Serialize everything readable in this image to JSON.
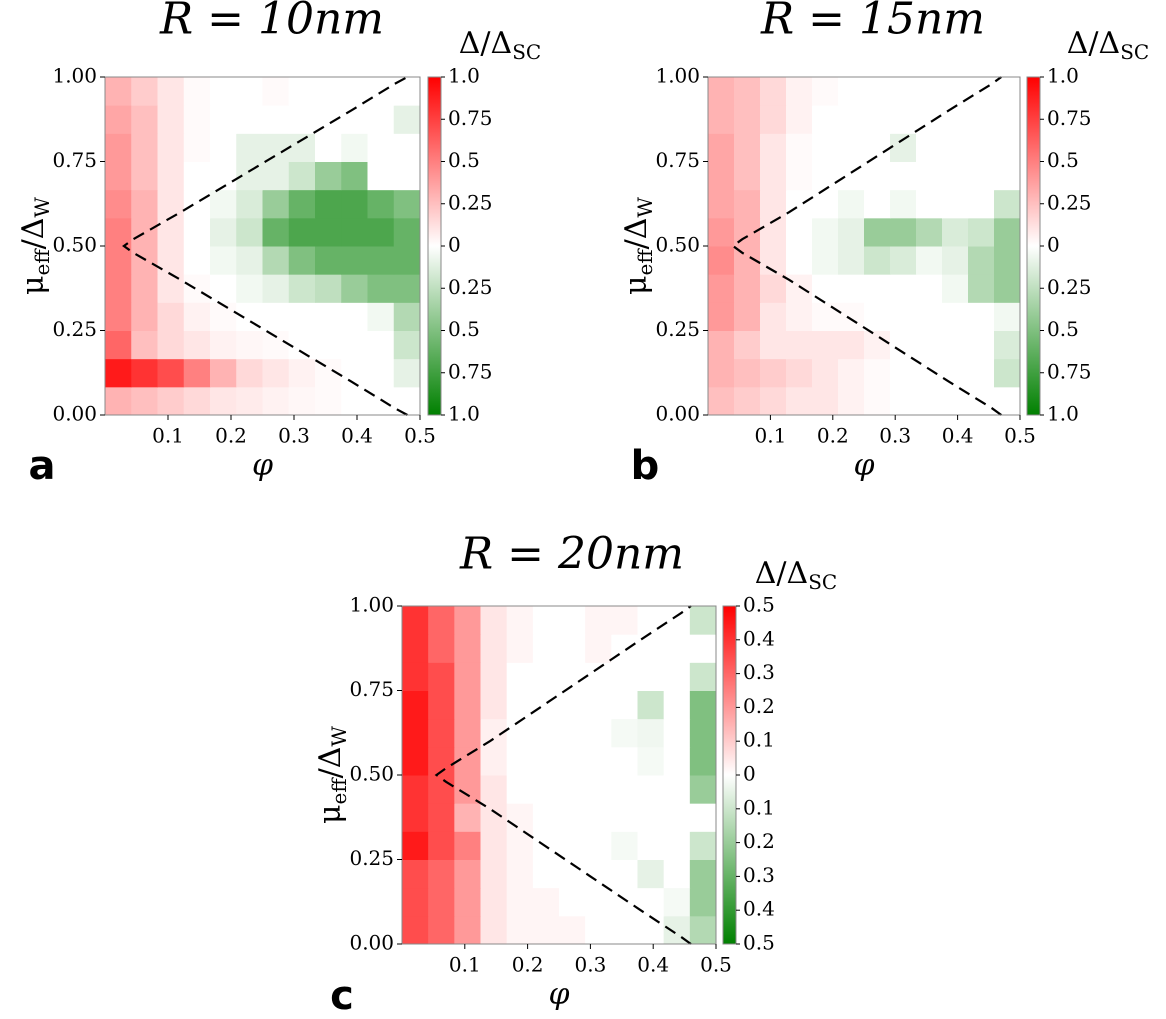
{
  "chart_data": [
    {
      "type": "heatmap",
      "title": "R = 10nm",
      "panel_label": "a",
      "xlabel": "φ",
      "ylabel": [
        "μ",
        "eff",
        "/Δ",
        "W"
      ],
      "colorbar_label": [
        "Δ/Δ",
        "SC"
      ],
      "xlim": [
        0,
        0.5
      ],
      "ylim": [
        0,
        1
      ],
      "xticks": [
        0.1,
        0.2,
        0.3,
        0.4,
        0.5
      ],
      "yticks": [
        {
          "value": 0,
          "label": "0.00"
        },
        0.25,
        {
          "value": 0.5,
          "label": "0.50"
        },
        0.75,
        {
          "value": 1,
          "label": "1.00"
        }
      ],
      "clim": [
        -1,
        1
      ],
      "cticks": [
        {
          "value": -1,
          "label": "1.0"
        },
        {
          "value": -0.75,
          "label": "0.75"
        },
        {
          "value": -0.5,
          "label": "0.5"
        },
        {
          "value": -0.25,
          "label": "0.25"
        },
        0,
        0.25,
        0.5,
        0.75,
        {
          "value": 1,
          "label": "1.0"
        }
      ],
      "colormap": [
        "#008000",
        "#ffffff",
        "#ff0000"
      ],
      "values": [
        [
          0.3,
          0.25,
          0.2,
          0.15,
          0.1,
          0.08,
          0.05,
          0.03,
          0.02,
          0,
          0,
          0
        ],
        [
          0.9,
          0.8,
          0.7,
          0.5,
          0.3,
          0.15,
          0.1,
          0.05,
          0.02,
          0,
          0,
          -0.1
        ],
        [
          0.6,
          0.25,
          0.15,
          0.1,
          0.05,
          0.03,
          0.02,
          0,
          0,
          0,
          0,
          -0.2
        ],
        [
          0.5,
          0.3,
          0.15,
          0.05,
          0.02,
          0,
          0,
          0,
          0,
          0,
          -0.05,
          -0.3
        ],
        [
          0.5,
          0.3,
          0.1,
          0.02,
          0,
          -0.05,
          -0.1,
          -0.2,
          -0.25,
          -0.4,
          -0.5,
          -0.5
        ],
        [
          0.5,
          0.3,
          0.1,
          0,
          -0.05,
          -0.1,
          -0.3,
          -0.5,
          -0.6,
          -0.6,
          -0.6,
          -0.6
        ],
        [
          0.5,
          0.3,
          0.1,
          0,
          -0.1,
          -0.2,
          -0.6,
          -0.7,
          -0.7,
          -0.7,
          -0.7,
          -0.6
        ],
        [
          0.45,
          0.3,
          0.1,
          0,
          -0.05,
          -0.15,
          -0.4,
          -0.6,
          -0.7,
          -0.7,
          -0.6,
          -0.5
        ],
        [
          0.4,
          0.25,
          0.1,
          0,
          0,
          -0.1,
          -0.1,
          -0.2,
          -0.4,
          -0.5,
          0,
          0
        ],
        [
          0.4,
          0.25,
          0.1,
          0.02,
          0,
          -0.1,
          -0.1,
          -0.1,
          0,
          -0.05,
          0,
          0
        ],
        [
          0.35,
          0.25,
          0.1,
          0.02,
          0,
          0,
          0,
          0,
          0,
          0,
          0,
          -0.1
        ],
        [
          0.3,
          0.2,
          0.1,
          0.02,
          0,
          0,
          0.02,
          0,
          0,
          0,
          0,
          0
        ]
      ],
      "boundary": {
        "x": [
          0.48,
          0.46,
          0.39,
          0.3,
          0.21,
          0.12,
          0.045,
          0.03,
          0.045,
          0.12,
          0.21,
          0.3,
          0.39,
          0.46,
          0.48
        ],
        "y": [
          0,
          0.02,
          0.1,
          0.2,
          0.3,
          0.4,
          0.48,
          0.5,
          0.52,
          0.6,
          0.7,
          0.8,
          0.9,
          0.98,
          1
        ]
      }
    },
    {
      "type": "heatmap",
      "title": "R = 15nm",
      "panel_label": "b",
      "xlabel": "φ",
      "ylabel": [
        "μ",
        "eff",
        "/Δ",
        "W"
      ],
      "colorbar_label": [
        "Δ/Δ",
        "SC"
      ],
      "xlim": [
        0,
        0.5
      ],
      "ylim": [
        0,
        1
      ],
      "xticks": [
        0.1,
        0.2,
        0.3,
        0.4,
        0.5
      ],
      "yticks": [
        {
          "value": 0,
          "label": "0.00"
        },
        0.25,
        {
          "value": 0.5,
          "label": "0.50"
        },
        0.75,
        {
          "value": 1,
          "label": "1.00"
        }
      ],
      "clim": [
        -1,
        1
      ],
      "cticks": [
        {
          "value": -1,
          "label": "1.0"
        },
        {
          "value": -0.75,
          "label": "0.75"
        },
        {
          "value": -0.5,
          "label": "0.5"
        },
        {
          "value": -0.25,
          "label": "0.25"
        },
        0,
        0.25,
        0.5,
        0.75,
        {
          "value": 1,
          "label": "1.0"
        }
      ],
      "colormap": [
        "#008000",
        "#ffffff",
        "#ff0000"
      ],
      "values": [
        [
          0.25,
          0.2,
          0.15,
          0.1,
          0.1,
          0.05,
          0.02,
          0,
          0,
          0,
          0,
          0
        ],
        [
          0.3,
          0.25,
          0.2,
          0.15,
          0.1,
          0.05,
          0.02,
          0,
          0,
          0,
          0,
          -0.2
        ],
        [
          0.3,
          0.2,
          0.1,
          0.1,
          0.1,
          0.1,
          0.05,
          0,
          0,
          0,
          0,
          -0.15
        ],
        [
          0.4,
          0.3,
          0.1,
          0.05,
          0.02,
          0.02,
          0,
          0,
          0,
          0,
          0,
          -0.05
        ],
        [
          0.4,
          0.3,
          0.15,
          0.05,
          0,
          0,
          0,
          0,
          0,
          -0.05,
          -0.3,
          -0.4
        ],
        [
          0.45,
          0.3,
          0.1,
          0,
          -0.05,
          -0.1,
          -0.2,
          -0.15,
          -0.05,
          -0.1,
          -0.3,
          -0.4
        ],
        [
          0.4,
          0.3,
          0.1,
          0,
          -0.05,
          -0.1,
          -0.4,
          -0.4,
          -0.3,
          -0.15,
          -0.2,
          -0.4
        ],
        [
          0.35,
          0.3,
          0.1,
          0,
          0,
          -0.05,
          0,
          -0.05,
          0,
          0,
          0,
          -0.2
        ],
        [
          0.35,
          0.25,
          0.1,
          0.02,
          0,
          0,
          0,
          0,
          0,
          0,
          0,
          0
        ],
        [
          0.35,
          0.25,
          0.1,
          0.02,
          0,
          0,
          0,
          -0.1,
          0,
          0,
          0,
          0
        ],
        [
          0.3,
          0.25,
          0.15,
          0.05,
          0,
          0,
          0,
          0,
          0,
          0,
          0,
          0
        ],
        [
          0.3,
          0.25,
          0.15,
          0.05,
          0.02,
          0,
          0,
          0,
          0,
          0,
          0,
          0
        ]
      ],
      "boundary": {
        "x": [
          0.47,
          0.455,
          0.385,
          0.3,
          0.215,
          0.13,
          0.055,
          0.04,
          0.055,
          0.13,
          0.215,
          0.3,
          0.385,
          0.455,
          0.47
        ],
        "y": [
          0,
          0.02,
          0.1,
          0.2,
          0.3,
          0.4,
          0.48,
          0.5,
          0.52,
          0.6,
          0.7,
          0.8,
          0.9,
          0.98,
          1
        ]
      }
    },
    {
      "type": "heatmap",
      "title": "R = 20nm",
      "panel_label": "c",
      "xlabel": "φ",
      "ylabel": [
        "μ",
        "eff",
        "/Δ",
        "W"
      ],
      "colorbar_label": [
        "Δ/Δ",
        "SC"
      ],
      "xlim": [
        0,
        0.5
      ],
      "ylim": [
        0,
        1
      ],
      "xticks": [
        0.1,
        0.2,
        0.3,
        0.4,
        0.5
      ],
      "yticks": [
        {
          "value": 0,
          "label": "0.00"
        },
        0.25,
        {
          "value": 0.5,
          "label": "0.50"
        },
        0.75,
        {
          "value": 1,
          "label": "1.00"
        }
      ],
      "clim": [
        -0.5,
        0.5
      ],
      "cticks": [
        {
          "value": -0.5,
          "label": "0.5"
        },
        {
          "value": -0.4,
          "label": "0.4"
        },
        {
          "value": -0.3,
          "label": "0.3"
        },
        {
          "value": -0.2,
          "label": "0.2"
        },
        {
          "value": -0.1,
          "label": "0.1"
        },
        0,
        0.1,
        0.2,
        0.3,
        0.4,
        0.5
      ],
      "colormap": [
        "#008000",
        "#ffffff",
        "#ff0000"
      ],
      "values": [
        [
          0.35,
          0.3,
          0.2,
          0.05,
          0.02,
          0.02,
          0.02,
          0,
          0,
          0,
          -0.05,
          -0.15
        ],
        [
          0.35,
          0.3,
          0.2,
          0.05,
          0.02,
          0.02,
          0,
          0,
          0,
          0,
          -0.02,
          -0.2
        ],
        [
          0.35,
          0.3,
          0.2,
          0.05,
          0.02,
          0,
          0,
          0,
          0,
          -0.05,
          0,
          -0.2
        ],
        [
          0.45,
          0.35,
          0.25,
          0.05,
          0.02,
          0,
          0,
          0,
          -0.02,
          0,
          0,
          -0.1
        ],
        [
          0.4,
          0.35,
          0.15,
          0.05,
          0.02,
          0,
          0,
          0,
          0,
          0,
          0,
          0
        ],
        [
          0.4,
          0.35,
          0.2,
          0.05,
          0,
          0,
          0,
          0,
          0,
          0,
          0,
          -0.2
        ],
        [
          0.45,
          0.35,
          0.2,
          0.03,
          0,
          0,
          0,
          0,
          0,
          -0.02,
          0,
          -0.25
        ],
        [
          0.45,
          0.35,
          0.2,
          0.03,
          0,
          0,
          0,
          0,
          -0.02,
          -0.03,
          0,
          -0.25
        ],
        [
          0.45,
          0.35,
          0.2,
          0.05,
          0,
          0,
          0,
          0,
          0,
          -0.1,
          0,
          -0.25
        ],
        [
          0.4,
          0.35,
          0.2,
          0.05,
          0,
          0,
          0,
          0,
          0,
          0,
          0,
          -0.1
        ],
        [
          0.4,
          0.3,
          0.2,
          0.05,
          0.02,
          0,
          0,
          0.02,
          0,
          0,
          0,
          0
        ],
        [
          0.4,
          0.3,
          0.2,
          0.05,
          0.02,
          0,
          0,
          0.02,
          0.02,
          0,
          0,
          -0.1
        ]
      ],
      "boundary": {
        "x": [
          0.46,
          0.445,
          0.38,
          0.3,
          0.22,
          0.14,
          0.07,
          0.055,
          0.07,
          0.14,
          0.22,
          0.3,
          0.38,
          0.445,
          0.46
        ],
        "y": [
          0,
          0.02,
          0.1,
          0.2,
          0.3,
          0.4,
          0.48,
          0.5,
          0.52,
          0.6,
          0.7,
          0.8,
          0.9,
          0.98,
          1
        ]
      }
    }
  ]
}
